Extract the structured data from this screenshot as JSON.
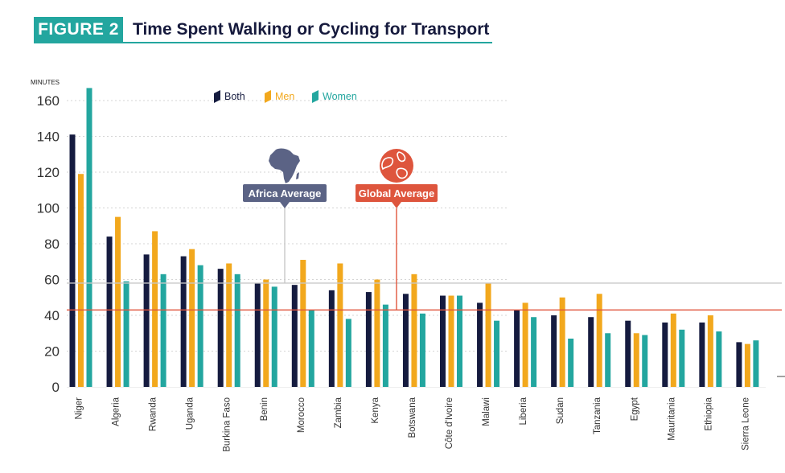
{
  "header": {
    "tag": "FIGURE 2",
    "title": "Time Spent Walking or Cycling for Transport"
  },
  "colors": {
    "both": "#151b3f",
    "men": "#f2a81d",
    "women": "#23a69f",
    "africa_line": "#c8c8c8",
    "global_line": "#e0553c",
    "africa_callout": "#5b6385",
    "global_callout": "#de553d",
    "grid": "#d5d5d5"
  },
  "chart_data": {
    "type": "bar",
    "title": "Time Spent Walking or Cycling for Transport",
    "ylabel": "MINUTES",
    "xlabel": "",
    "ylim": [
      0,
      160
    ],
    "yticks": [
      0,
      20,
      40,
      60,
      80,
      100,
      120,
      140,
      160
    ],
    "grid": true,
    "legend": "top-left",
    "categories": [
      "Niger",
      "Algeria",
      "Rwanda",
      "Uganda",
      "Burkina Faso",
      "Benin",
      "Morocco",
      "Zambia",
      "Kenya",
      "Botswana",
      "Côte d'Ivoire",
      "Malawi",
      "Liberia",
      "Sudan",
      "Tanzania",
      "Egypt",
      "Mauritania",
      "Ethiopia",
      "Sierra Leone"
    ],
    "series": [
      {
        "name": "Both",
        "key": "both",
        "values": [
          141,
          84,
          74,
          73,
          66,
          58,
          57,
          54,
          53,
          52,
          51,
          47,
          43,
          40,
          39,
          37,
          36,
          36,
          25
        ]
      },
      {
        "name": "Men",
        "key": "men",
        "values": [
          119,
          95,
          87,
          77,
          69,
          60,
          71,
          69,
          60,
          63,
          51,
          58,
          47,
          50,
          52,
          30,
          41,
          40,
          24
        ]
      },
      {
        "name": "Women",
        "key": "women",
        "values": [
          167,
          59,
          63,
          68,
          63,
          56,
          43,
          38,
          46,
          41,
          51,
          37,
          39,
          27,
          30,
          29,
          32,
          31,
          26
        ]
      }
    ],
    "reference_lines": [
      {
        "label": "Africa Average",
        "value": 58,
        "color_key": "africa_line",
        "callout_key": "africa_callout",
        "icon": "africa-continent-icon"
      },
      {
        "label": "Global Average",
        "value": 43,
        "color_key": "global_line",
        "callout_key": "global_callout",
        "icon": "globe-icon"
      }
    ]
  }
}
